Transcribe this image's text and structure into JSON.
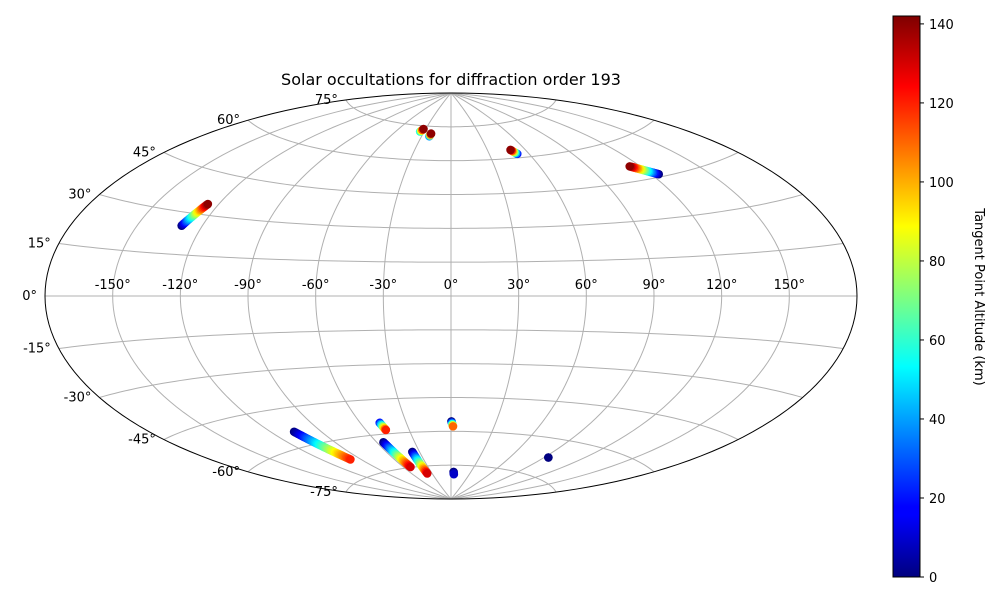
{
  "chart_data": {
    "type": "scatter",
    "projection": "aitoff",
    "title": "Solar occultations for diffraction order 193",
    "xlabel": "",
    "ylabel": "",
    "grid": true,
    "xlim": [
      -180,
      180
    ],
    "ylim": [
      -90,
      90
    ],
    "x_ticks": [
      -150,
      -120,
      -90,
      -60,
      -30,
      0,
      30,
      60,
      90,
      120,
      150
    ],
    "x_tick_labels": [
      "-150°",
      "-120°",
      "-90°",
      "-60°",
      "-30°",
      "0°",
      "30°",
      "60°",
      "90°",
      "120°",
      "150°"
    ],
    "y_ticks": [
      -75,
      -60,
      -45,
      -30,
      -15,
      0,
      15,
      30,
      45,
      60,
      75
    ],
    "y_tick_labels": [
      "-75°",
      "-60°",
      "-45°",
      "-30°",
      "-15°",
      "0°",
      "15°",
      "30°",
      "45°",
      "60°",
      "75°"
    ],
    "colorbar": {
      "label": "Tangent Point Altitude (km)",
      "colormap": "jet",
      "min": 0,
      "max": 142,
      "ticks": [
        0,
        20,
        40,
        60,
        80,
        100,
        120,
        140
      ],
      "tick_labels": [
        "0",
        "20",
        "40",
        "60",
        "80",
        "100",
        "120",
        "140"
      ]
    },
    "tracks": [
      {
        "lon_start": -129.6,
        "lat_start": 25.3,
        "lon_end": -125.3,
        "lat_end": 33.9,
        "alt_start": 0,
        "alt_end": 140
      },
      {
        "lon_start": -34.4,
        "lat_start": 72.4,
        "lon_end": -32.5,
        "lat_end": 73.6,
        "alt_start": 60,
        "alt_end": 140
      },
      {
        "lon_start": -22.2,
        "lat_start": 70.6,
        "lon_end": -21.5,
        "lat_end": 71.8,
        "alt_start": 40,
        "alt_end": 140
      },
      {
        "lon_start": 51.3,
        "lat_start": 61.7,
        "lon_end": 48.5,
        "lat_end": 63.6,
        "alt_start": 20,
        "alt_end": 140
      },
      {
        "lon_start": 124.0,
        "lat_start": 46.0,
        "lon_end": 114.1,
        "lat_end": 50.6,
        "alt_start": 0,
        "alt_end": 140
      },
      {
        "lon_start": -106.5,
        "lat_start": -54.2,
        "lon_end": -98.6,
        "lat_end": -67.9,
        "alt_start": 0,
        "alt_end": 120
      },
      {
        "lon_start": -54.9,
        "lat_start": -63.4,
        "lon_end": -51.7,
        "lat_end": -74.8,
        "alt_start": 0,
        "alt_end": 130
      },
      {
        "lon_start": -47.5,
        "lat_start": -55.1,
        "lon_end": -46.4,
        "lat_end": -58.3,
        "alt_start": 20,
        "alt_end": 120
      },
      {
        "lon_start": -36.7,
        "lat_start": -68.5,
        "lon_end": -37.4,
        "lat_end": -78.2,
        "alt_start": 0,
        "alt_end": 130
      },
      {
        "lon_start": 0.3,
        "lat_start": -55.6,
        "lon_end": 1.4,
        "lat_end": -57.8,
        "alt_start": 0,
        "alt_end": 110
      },
      {
        "lon_start": 4.0,
        "lat_start": -78.0,
        "lon_end": 4.7,
        "lat_end": -79.0,
        "alt_start": 0,
        "alt_end": 10
      },
      {
        "lon_start": 93.4,
        "lat_start": -67.5,
        "lon_end": 93.4,
        "lat_end": -67.5,
        "alt_start": 0,
        "alt_end": 0
      }
    ]
  }
}
